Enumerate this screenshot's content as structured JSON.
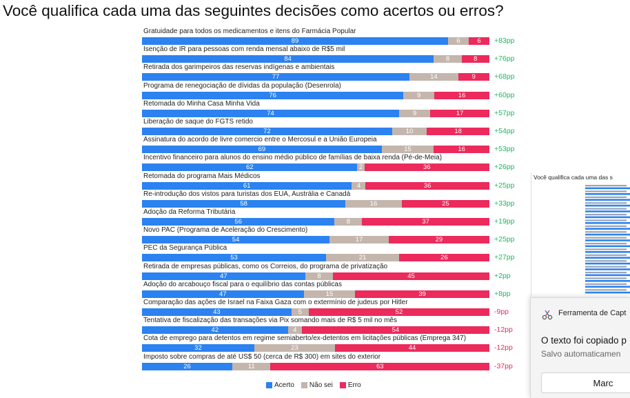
{
  "title": "Você qualifica cada uma das seguintes decisões como acertos ou erros?",
  "colors": {
    "acerto": "#2b82f0",
    "nao_sei": "#c4b6ad",
    "erro": "#ec2a5c",
    "net_positive": "#23b461",
    "net_negative": "#ec2a5c"
  },
  "chart_data": {
    "type": "bar",
    "orientation": "horizontal-stacked-100",
    "series_names": [
      "Acerto",
      "Não sei",
      "Erro"
    ],
    "categories": [
      "Gratuidade para todos os medicamentos e itens do Farmácia Popular",
      "Isenção de IR para pessoas com renda mensal abaixo de R$5 mil",
      "Retirada dos garimpeiros das reservas indígenas e ambientais",
      "Programa de renegociação de dívidas da população (Desenrola)",
      "Retomada do Minha Casa Minha Vida",
      "Liberação de saque do FGTS retido",
      "Assinatura do acordo de livre comercio entre o Mercosul e a União Europeia",
      "Incentivo financeiro para alunos do ensino médio público de famílias de baixa renda (Pé-de-Meia)",
      "Retomada do programa Mais Médicos",
      "Re-introdução dos vistos para turistas dos EUA, Austrália e Canadá",
      "Adoção da Reforma Tributária",
      "Novo PAC (Programa de Aceleração do Crescimento)",
      "PEC da Segurança Pública",
      "Retirada de empresas públicas, como os Correios, do programa de privatização",
      "Adoção do arcabouço fiscal para o equilíbrio das contas públicas",
      "Comparação das ações de Israel na Faixa Gaza com o extermínio de judeus por Hitler",
      "Tentativa de fiscalização das transações via Pix somando mais de R$ 5 mil no mês",
      "Cota de emprego para detentos em regime semiaberto/ex-detentos em licitações públicas (Emprega 347)",
      "Imposto sobre compras de até US$ 50 (cerca de R$ 300) em sites do exterior"
    ],
    "series": [
      {
        "name": "Acerto",
        "values": [
          89,
          84,
          77,
          76,
          74,
          72,
          69,
          62,
          61,
          58,
          56,
          54,
          53,
          47,
          47,
          43,
          42,
          32,
          26
        ]
      },
      {
        "name": "Não sei",
        "values": [
          6,
          8,
          14,
          9,
          9,
          10,
          15,
          2,
          4,
          16,
          8,
          17,
          21,
          8,
          15,
          5,
          4,
          23,
          11
        ]
      },
      {
        "name": "Erro",
        "values": [
          6,
          8,
          9,
          16,
          17,
          18,
          16,
          36,
          36,
          25,
          37,
          29,
          26,
          45,
          39,
          52,
          54,
          44,
          63
        ]
      }
    ],
    "net_labels": [
      "+83pp",
      "+76pp",
      "+68pp",
      "+60pp",
      "+57pp",
      "+54pp",
      "+53pp",
      "+26pp",
      "+25pp",
      "+33pp",
      "+19pp",
      "+25pp",
      "+27pp",
      "+2pp",
      "+8pp",
      "-9pp",
      "-12pp",
      "-12pp",
      "-37pp"
    ],
    "legend": {
      "items": [
        "Acerto",
        "Não sei",
        "Erro"
      ],
      "position": "bottom"
    },
    "grid": false
  },
  "overlay": {
    "thumbnail_title": "Você qualifica cada uma das s",
    "toast": {
      "app_name": "Ferramenta de Capt",
      "message": "O texto foi copiado p",
      "sub_message": "Salvo automaticamen",
      "button_label": "Marc"
    }
  }
}
